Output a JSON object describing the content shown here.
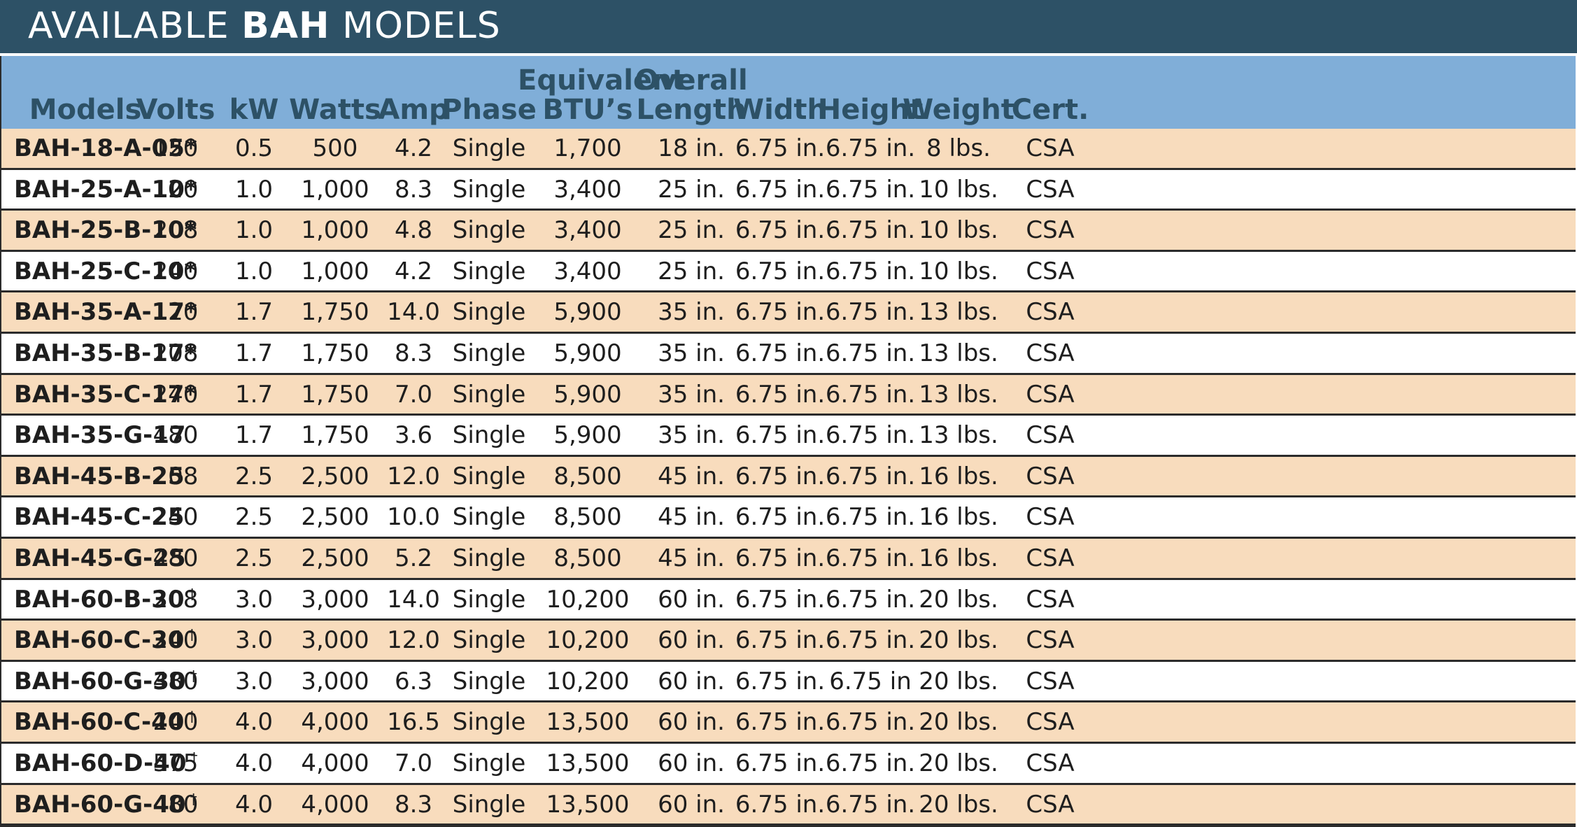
{
  "title": {
    "prefix": "AVAILABLE ",
    "bold": "BAH",
    "suffix": " MODELS"
  },
  "headers": [
    "Models",
    "Volts",
    "kW",
    "Watts",
    "Amp",
    "Phase",
    "Equivalent\nBTU’s",
    "Overall\nLength",
    "Width",
    "Height",
    "Weight",
    "Cert."
  ],
  "rows": [
    {
      "model": "BAH-18-A-05*",
      "mark": "",
      "volts": "120",
      "kw": "0.5",
      "watts": "500",
      "amp": "4.2",
      "phase": "Single",
      "btu": "1,700",
      "length": "18 in.",
      "width": "6.75 in.",
      "height": "6.75 in.",
      "weight": "8 lbs.",
      "cert": "CSA"
    },
    {
      "model": "BAH-25-A-10*",
      "mark": "",
      "volts": "120",
      "kw": "1.0",
      "watts": "1,000",
      "amp": "8.3",
      "phase": "Single",
      "btu": "3,400",
      "length": "25 in.",
      "width": "6.75 in.",
      "height": "6.75 in.",
      "weight": "10 lbs.",
      "cert": "CSA"
    },
    {
      "model": "BAH-25-B-10*",
      "mark": "",
      "volts": "208",
      "kw": "1.0",
      "watts": "1,000",
      "amp": "4.8",
      "phase": "Single",
      "btu": "3,400",
      "length": "25 in.",
      "width": "6.75 in.",
      "height": "6.75 in.",
      "weight": "10 lbs.",
      "cert": "CSA"
    },
    {
      "model": "BAH-25-C-10*",
      "mark": "",
      "volts": "240",
      "kw": "1.0",
      "watts": "1,000",
      "amp": "4.2",
      "phase": "Single",
      "btu": "3,400",
      "length": "25 in.",
      "width": "6.75 in.",
      "height": "6.75 in.",
      "weight": "10 lbs.",
      "cert": "CSA"
    },
    {
      "model": "BAH-35-A-17*",
      "mark": "",
      "volts": "120",
      "kw": "1.7",
      "watts": "1,750",
      "amp": "14.0",
      "phase": "Single",
      "btu": "5,900",
      "length": "35 in.",
      "width": "6.75 in.",
      "height": "6.75 in.",
      "weight": "13 lbs.",
      "cert": "CSA"
    },
    {
      "model": "BAH-35-B-17*",
      "mark": "",
      "volts": "208",
      "kw": "1.7",
      "watts": "1,750",
      "amp": "8.3",
      "phase": "Single",
      "btu": "5,900",
      "length": "35 in.",
      "width": "6.75 in.",
      "height": "6.75 in.",
      "weight": "13 lbs.",
      "cert": "CSA"
    },
    {
      "model": "BAH-35-C-17*",
      "mark": "",
      "volts": "240",
      "kw": "1.7",
      "watts": "1,750",
      "amp": "7.0",
      "phase": "Single",
      "btu": "5,900",
      "length": "35 in.",
      "width": "6.75 in.",
      "height": "6.75 in.",
      "weight": "13 lbs.",
      "cert": "CSA"
    },
    {
      "model": "BAH-35-G-17",
      "mark": "",
      "volts": "480",
      "kw": "1.7",
      "watts": "1,750",
      "amp": "3.6",
      "phase": "Single",
      "btu": "5,900",
      "length": "35 in.",
      "width": "6.75 in.",
      "height": "6.75 in.",
      "weight": "13 lbs.",
      "cert": "CSA"
    },
    {
      "model": "BAH-45-B-25",
      "mark": "",
      "volts": "208",
      "kw": "2.5",
      "watts": "2,500",
      "amp": "12.0",
      "phase": "Single",
      "btu": "8,500",
      "length": "45 in.",
      "width": "6.75 in.",
      "height": "6.75 in.",
      "weight": "16 lbs.",
      "cert": "CSA"
    },
    {
      "model": "BAH-45-C-25",
      "mark": "",
      "volts": "240",
      "kw": "2.5",
      "watts": "2,500",
      "amp": "10.0",
      "phase": "Single",
      "btu": "8,500",
      "length": "45 in.",
      "width": "6.75 in.",
      "height": "6.75 in.",
      "weight": "16 lbs.",
      "cert": "CSA"
    },
    {
      "model": "BAH-45-G-25",
      "mark": "",
      "volts": "480",
      "kw": "2.5",
      "watts": "2,500",
      "amp": "5.2",
      "phase": "Single",
      "btu": "8,500",
      "length": "45 in.",
      "width": "6.75 in.",
      "height": "6.75 in.",
      "weight": "16 lbs.",
      "cert": "CSA"
    },
    {
      "model": "BAH-60-B-30",
      "mark": "†",
      "volts": "208",
      "kw": "3.0",
      "watts": "3,000",
      "amp": "14.0",
      "phase": "Single",
      "btu": "10,200",
      "length": "60 in.",
      "width": "6.75 in.",
      "height": "6.75 in.",
      "weight": "20 lbs.",
      "cert": "CSA"
    },
    {
      "model": "BAH-60-C-30",
      "mark": "†",
      "volts": "240",
      "kw": "3.0",
      "watts": "3,000",
      "amp": "12.0",
      "phase": "Single",
      "btu": "10,200",
      "length": "60 in.",
      "width": "6.75 in.",
      "height": "6.75 in.",
      "weight": "20 lbs.",
      "cert": "CSA"
    },
    {
      "model": "BAH-60-G-30",
      "mark": "†",
      "volts": "480",
      "kw": "3.0",
      "watts": "3,000",
      "amp": "6.3",
      "phase": "Single",
      "btu": "10,200",
      "length": "60 in.",
      "width": "6.75 in.",
      "height": "6.75 in",
      "weight": "20 lbs.",
      "cert": "CSA"
    },
    {
      "model": "BAH-60-C-40",
      "mark": "†",
      "volts": "240",
      "kw": "4.0",
      "watts": "4,000",
      "amp": "16.5",
      "phase": "Single",
      "btu": "13,500",
      "length": "60 in.",
      "width": "6.75 in.",
      "height": "6.75 in.",
      "weight": "20 lbs.",
      "cert": "CSA"
    },
    {
      "model": "BAH-60-D-40",
      "mark": "†",
      "volts": "575",
      "kw": "4.0",
      "watts": "4,000",
      "amp": "7.0",
      "phase": "Single",
      "btu": "13,500",
      "length": "60 in.",
      "width": "6.75 in.",
      "height": "6.75 in.",
      "weight": "20 lbs.",
      "cert": "CSA"
    },
    {
      "model": "BAH-60-G-40",
      "mark": "†",
      "volts": "480",
      "kw": "4.0",
      "watts": "4,000",
      "amp": "8.3",
      "phase": "Single",
      "btu": "13,500",
      "length": "60 in.",
      "width": "6.75 in.",
      "height": "6.75 in.",
      "weight": "20 lbs.",
      "cert": "CSA"
    }
  ],
  "colors": {
    "title_bg": "#2d5166",
    "header_bg": "#80aed8",
    "header_text": "#2d5166",
    "odd_row": "#f8dcbd",
    "even_row": "#ffffff"
  }
}
